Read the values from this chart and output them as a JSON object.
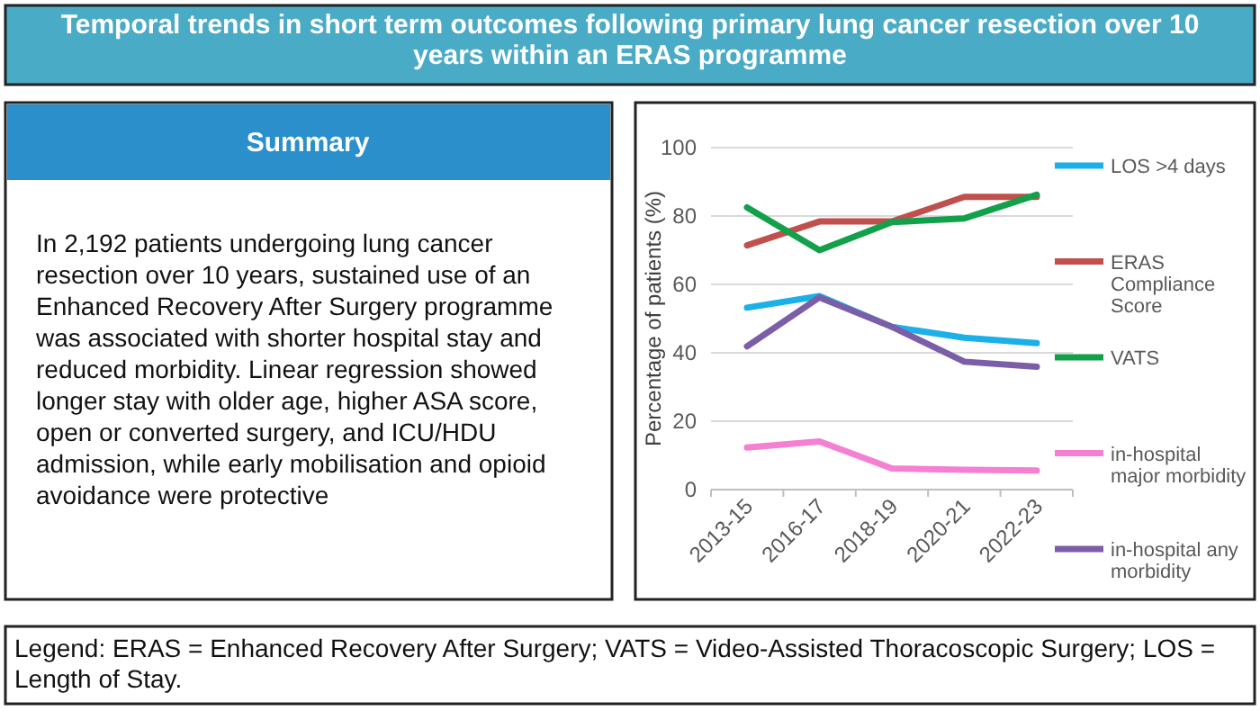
{
  "chart_data": [
    {
      "type": "other",
      "title": "Temporal trends in short term outcomes following primary lung cancer resection over 10 years within an ERAS programme",
      "subtitle": "Summary",
      "annotations": [
        "In 2,192 patients undergoing lung cancer resection over 10 years, sustained use of an Enhanced Recovery After Surgery programme was associated with shorter hospital stay and reduced morbidity. Linear regression showed longer stay with older age, higher ASA score, open or converted surgery, and ICU/HDU admission, while early mobilisation and opioid avoidance were protective",
        "Legend: ERAS = Enhanced Recovery After Surgery; VATS = Video-Assisted Thoracoscopic Surgery; LOS = Length of Stay."
      ]
    },
    {
      "type": "line",
      "ylabel": "Percentage of patients (%)",
      "categories": [
        "2013-15",
        "2016-17",
        "2018-19",
        "2020-21",
        "2022-23"
      ],
      "ylim": [
        0,
        100
      ],
      "yticks": [
        0,
        20,
        40,
        60,
        80,
        100
      ],
      "grid": "y",
      "legend": "right",
      "marker": "none",
      "line_style": "solid",
      "series": [
        {
          "name": "LOS >4 days",
          "color": "#1cb0e8",
          "values": [
            53.2,
            56.6,
            47.6,
            44.4,
            42.8
          ]
        },
        {
          "name": "ERAS Compliance Score",
          "color": "#c0504d",
          "values": [
            71.4,
            78.4,
            78.4,
            85.6,
            85.6
          ]
        },
        {
          "name": "VATS",
          "color": "#12a04a",
          "values": [
            82.5,
            70,
            78.2,
            79.3,
            86.2
          ]
        },
        {
          "name": "in-hospital major morbidity",
          "color": "#f57fd2",
          "values": [
            12.3,
            14.1,
            6.2,
            5.8,
            5.6
          ]
        },
        {
          "name": "in-hospital any morbidity",
          "color": "#7b5ea7",
          "values": [
            41.9,
            56.2,
            47.6,
            37.4,
            35.9
          ]
        }
      ]
    }
  ]
}
